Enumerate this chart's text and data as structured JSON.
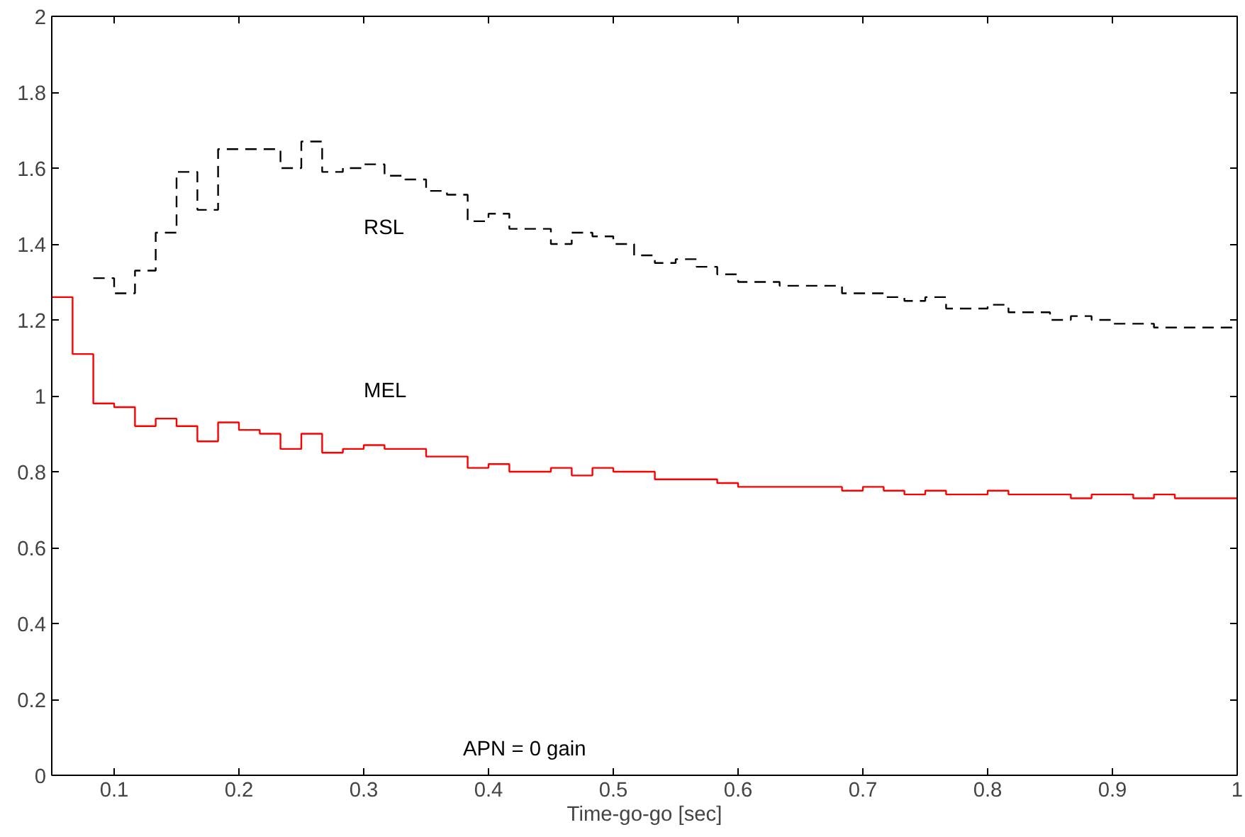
{
  "chart_data": {
    "type": "step",
    "xlabel": "Time-go-go [sec]",
    "x": [
      0.05,
      0.0667,
      0.0833,
      0.1,
      0.1167,
      0.1333,
      0.15,
      0.1667,
      0.1833,
      0.2,
      0.2167,
      0.2333,
      0.25,
      0.2667,
      0.2833,
      0.3,
      0.3167,
      0.3333,
      0.35,
      0.3667,
      0.3833,
      0.4,
      0.4167,
      0.4333,
      0.45,
      0.4667,
      0.4833,
      0.5,
      0.5167,
      0.5333,
      0.55,
      0.5667,
      0.5833,
      0.6,
      0.6167,
      0.6333,
      0.65,
      0.6667,
      0.6833,
      0.7,
      0.7167,
      0.7333,
      0.75,
      0.7667,
      0.7833,
      0.8,
      0.8167,
      0.8333,
      0.85,
      0.8667,
      0.8833,
      0.9,
      0.9167,
      0.9333,
      0.95,
      0.9667,
      0.9833,
      1
    ],
    "series": [
      {
        "name": "RSL",
        "color": "#000000",
        "line_style": "dashed",
        "values": [
          null,
          null,
          1.31,
          1.27,
          1.33,
          1.43,
          1.59,
          1.49,
          1.65,
          1.65,
          1.65,
          1.6,
          1.67,
          1.59,
          1.6,
          1.61,
          1.58,
          1.57,
          1.54,
          1.53,
          1.46,
          1.48,
          1.44,
          1.44,
          1.4,
          1.43,
          1.42,
          1.4,
          1.37,
          1.35,
          1.36,
          1.34,
          1.32,
          1.3,
          1.3,
          1.29,
          1.29,
          1.29,
          1.27,
          1.27,
          1.26,
          1.25,
          1.26,
          1.23,
          1.23,
          1.24,
          1.22,
          1.22,
          1.2,
          1.21,
          1.2,
          1.19,
          1.19,
          1.18,
          1.18,
          1.18,
          1.18,
          1.18
        ]
      },
      {
        "name": "MEL",
        "color": "#ff0000",
        "line_style": "solid",
        "values": [
          1.26,
          1.11,
          0.98,
          0.97,
          0.92,
          0.94,
          0.92,
          0.88,
          0.93,
          0.91,
          0.9,
          0.86,
          0.9,
          0.85,
          0.86,
          0.87,
          0.86,
          0.86,
          0.84,
          0.84,
          0.81,
          0.82,
          0.8,
          0.8,
          0.81,
          0.79,
          0.81,
          0.8,
          0.8,
          0.78,
          0.78,
          0.78,
          0.77,
          0.76,
          0.76,
          0.76,
          0.76,
          0.76,
          0.75,
          0.76,
          0.75,
          0.74,
          0.75,
          0.74,
          0.74,
          0.75,
          0.74,
          0.74,
          0.74,
          0.73,
          0.74,
          0.74,
          0.73,
          0.74,
          0.73,
          0.73,
          0.73,
          0.73
        ]
      }
    ],
    "annotations": [
      "APN = 0 gain"
    ],
    "xlim": [
      0.05,
      1
    ],
    "ylim": [
      0,
      2
    ],
    "xticks": [
      0.1,
      0.2,
      0.3,
      0.4,
      0.5,
      0.6,
      0.7,
      0.8,
      0.9,
      1
    ],
    "yticks": [
      0,
      0.2,
      0.4,
      0.6,
      0.8,
      1,
      1.2,
      1.4,
      1.6,
      1.8,
      2
    ],
    "grid": false
  }
}
